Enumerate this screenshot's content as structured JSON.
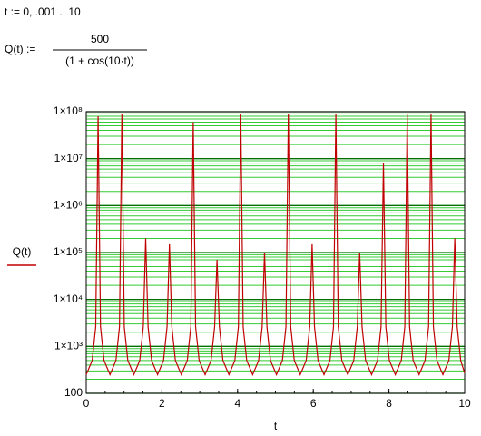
{
  "worksheet": {
    "range_definition": "t := 0, .001 .. 10",
    "function_lhs": "Q(t) :=",
    "numerator": 500,
    "denominator": "(1 + cos(10·t))"
  },
  "chart_data": {
    "type": "line",
    "x_label": "t",
    "x": [
      0,
      0.157,
      0.251,
      0.314,
      0.377,
      0.471,
      0.628,
      0.785,
      0.879,
      0.942,
      1.005,
      1.099,
      1.257,
      1.414,
      1.508,
      1.571,
      1.634,
      1.728,
      1.885,
      2.042,
      2.136,
      2.199,
      2.262,
      2.356,
      2.513,
      2.67,
      2.764,
      2.827,
      2.89,
      2.984,
      3.142,
      3.299,
      3.393,
      3.456,
      3.519,
      3.613,
      3.77,
      3.927,
      4.021,
      4.084,
      4.147,
      4.241,
      4.398,
      4.555,
      4.649,
      4.712,
      4.775,
      4.869,
      5.027,
      5.184,
      5.278,
      5.341,
      5.404,
      5.498,
      5.655,
      5.812,
      5.906,
      5.969,
      6.032,
      6.126,
      6.283,
      6.44,
      6.534,
      6.597,
      6.66,
      6.754,
      6.912,
      7.069,
      7.163,
      7.226,
      7.289,
      7.383,
      7.54,
      7.697,
      7.791,
      7.854,
      7.917,
      8.011,
      8.168,
      8.325,
      8.419,
      8.482,
      8.545,
      8.639,
      8.796,
      8.953,
      9.047,
      9.111,
      9.174,
      9.268,
      9.425,
      9.582,
      9.676,
      9.739,
      9.802,
      9.896,
      10
    ],
    "series": [
      {
        "name": "Q(t)",
        "color": "#c00000",
        "values": [
          250,
          500,
          2618,
          80000000,
          2618,
          500,
          250,
          500,
          2618,
          90000000,
          2618,
          500,
          250,
          500,
          2618,
          200000,
          2618,
          500,
          250,
          500,
          2618,
          150000,
          2618,
          500,
          250,
          500,
          2618,
          60000000,
          2618,
          500,
          250,
          500,
          2618,
          70000,
          2618,
          500,
          250,
          500,
          2618,
          90000000,
          2618,
          500,
          250,
          500,
          2618,
          100000,
          2618,
          500,
          250,
          500,
          2618,
          90000000,
          2618,
          500,
          250,
          500,
          2618,
          150000,
          2618,
          500,
          250,
          500,
          2618,
          90000000,
          2618,
          500,
          250,
          500,
          2618,
          100000,
          2618,
          500,
          250,
          500,
          2618,
          8000000,
          2618,
          500,
          250,
          500,
          2618,
          90000000,
          2618,
          500,
          250,
          500,
          2618,
          90000000,
          2618,
          500,
          250,
          500,
          2618,
          200000,
          2618,
          500,
          268
        ]
      }
    ],
    "xlim": [
      0,
      10
    ],
    "xticks": [
      0,
      2,
      4,
      6,
      8,
      10
    ],
    "ylim": [
      100,
      100000000
    ],
    "log_y": true,
    "grid": true,
    "minor_grid": true,
    "yticks": [
      100,
      {
        "value": 1000,
        "label": "1×10³"
      },
      {
        "value": 10000,
        "label": "1×10⁴"
      },
      {
        "value": 100000,
        "label": "1×10⁵"
      },
      {
        "value": 1000000,
        "label": "1×10⁶"
      },
      {
        "value": 10000000,
        "label": "1×10⁷"
      },
      {
        "value": 100000000,
        "label": "1×10⁸"
      }
    ]
  }
}
